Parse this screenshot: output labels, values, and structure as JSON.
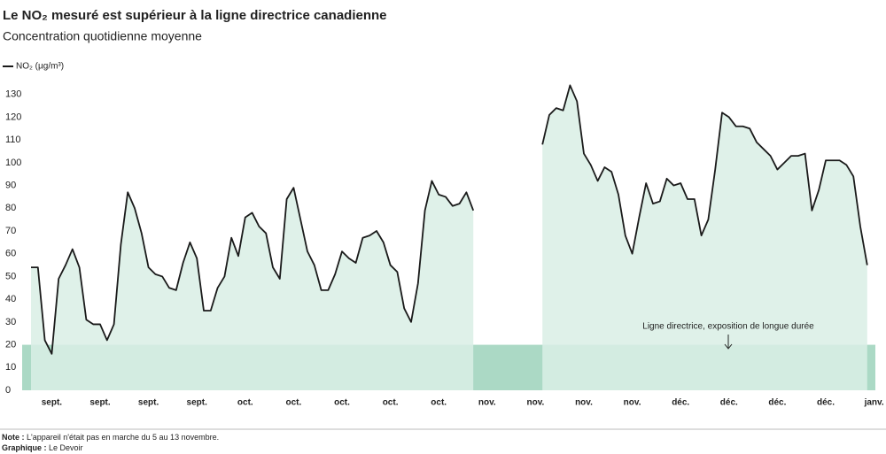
{
  "chart_data": {
    "type": "line",
    "title": "Le NO₂ mesuré est supérieur à la ligne directrice canadienne",
    "subtitle": "Concentration quotidienne moyenne",
    "categories": [
      null,
      null,
      null,
      "sept.",
      null,
      null,
      null,
      null,
      null,
      null,
      "sept.",
      null,
      null,
      null,
      null,
      null,
      null,
      "sept.",
      null,
      null,
      null,
      null,
      null,
      null,
      "sept.",
      null,
      null,
      null,
      null,
      null,
      null,
      "oct.",
      null,
      null,
      null,
      null,
      null,
      null,
      "oct.",
      null,
      null,
      null,
      null,
      null,
      null,
      "oct.",
      null,
      null,
      null,
      null,
      null,
      null,
      "oct.",
      null,
      null,
      null,
      null,
      null,
      null,
      "oct.",
      null,
      null,
      null,
      null,
      null,
      null,
      "nov.",
      null,
      null,
      null,
      null,
      null,
      null,
      "nov.",
      null,
      null,
      null,
      null,
      null,
      null,
      "nov.",
      null,
      null,
      null,
      null,
      null,
      null,
      "nov.",
      null,
      null,
      null,
      null,
      null,
      null,
      "déc.",
      null,
      null,
      null,
      null,
      null,
      null,
      "déc.",
      null,
      null,
      null,
      null,
      null,
      null,
      "déc.",
      null,
      null,
      null,
      null,
      null,
      null,
      "déc.",
      null,
      null,
      null,
      null,
      null,
      null,
      "janv."
    ],
    "series": [
      {
        "name": "NO₂ (µg/m³)",
        "color": "#1a1a1a",
        "area_color": "#d9eee5",
        "values": [
          54,
          54,
          22,
          16,
          49,
          55,
          62,
          54,
          31,
          29,
          29,
          22,
          29,
          64,
          87,
          80,
          69,
          54,
          51,
          50,
          45,
          44,
          56,
          65,
          58,
          35,
          35,
          45,
          50,
          67,
          59,
          76,
          78,
          72,
          69,
          54,
          49,
          84,
          89,
          75,
          61,
          55,
          44,
          44,
          51,
          61,
          58,
          56,
          67,
          68,
          70,
          65,
          55,
          52,
          36,
          30,
          47,
          79,
          92,
          86,
          85,
          81,
          82,
          87,
          79,
          null,
          null,
          null,
          null,
          null,
          null,
          null,
          null,
          null,
          108,
          121,
          124,
          123,
          134,
          127,
          104,
          99,
          92,
          98,
          96,
          86,
          68,
          60,
          76,
          91,
          82,
          83,
          93,
          90,
          91,
          84,
          84,
          68,
          75,
          97,
          122,
          120,
          116,
          116,
          115,
          109,
          106,
          103,
          97,
          100,
          103,
          103,
          104,
          79,
          88,
          101,
          101,
          101,
          99,
          94,
          72,
          55,
          null
        ]
      }
    ],
    "ylim": [
      0,
      140
    ],
    "yticks": [
      0,
      10,
      20,
      30,
      40,
      50,
      60,
      70,
      80,
      90,
      100,
      110,
      120,
      130
    ],
    "grid": false,
    "guideline": {
      "value": 20,
      "color": "#a2d5bf",
      "label": "Ligne directrice, exposition de longue durée"
    },
    "notes": [
      {
        "label": "Note :",
        "text": "L'appareil n'était pas en marche du 5 au 13 novembre."
      },
      {
        "label": "Graphique :",
        "text": "Le Devoir"
      }
    ]
  }
}
